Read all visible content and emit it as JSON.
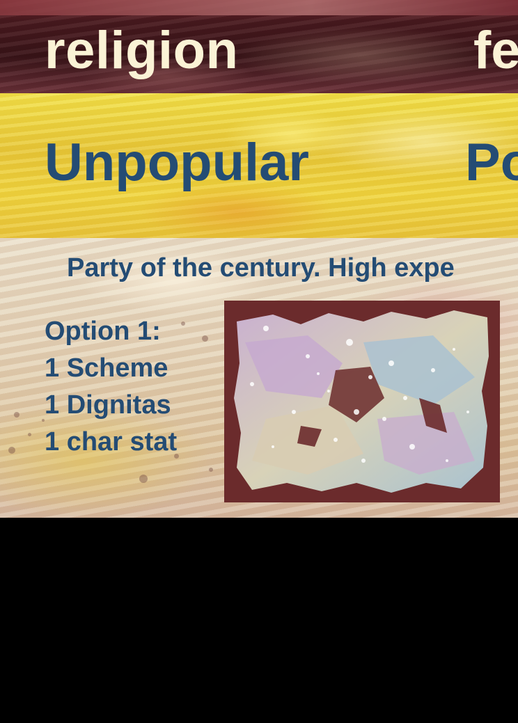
{
  "card": {
    "title_left": "religion",
    "title_right_partial": "fe",
    "subtitle_left": "Unpopular",
    "subtitle_right_partial": "Po",
    "description": "Party of the century. High expe",
    "options": [
      "Option 1:",
      "1 Scheme",
      "1 Dignitas",
      "1 char stat"
    ]
  },
  "colors": {
    "title_text": "#fbf3d6",
    "blue_text": "#244c74",
    "frame": "#6b2b2c"
  }
}
